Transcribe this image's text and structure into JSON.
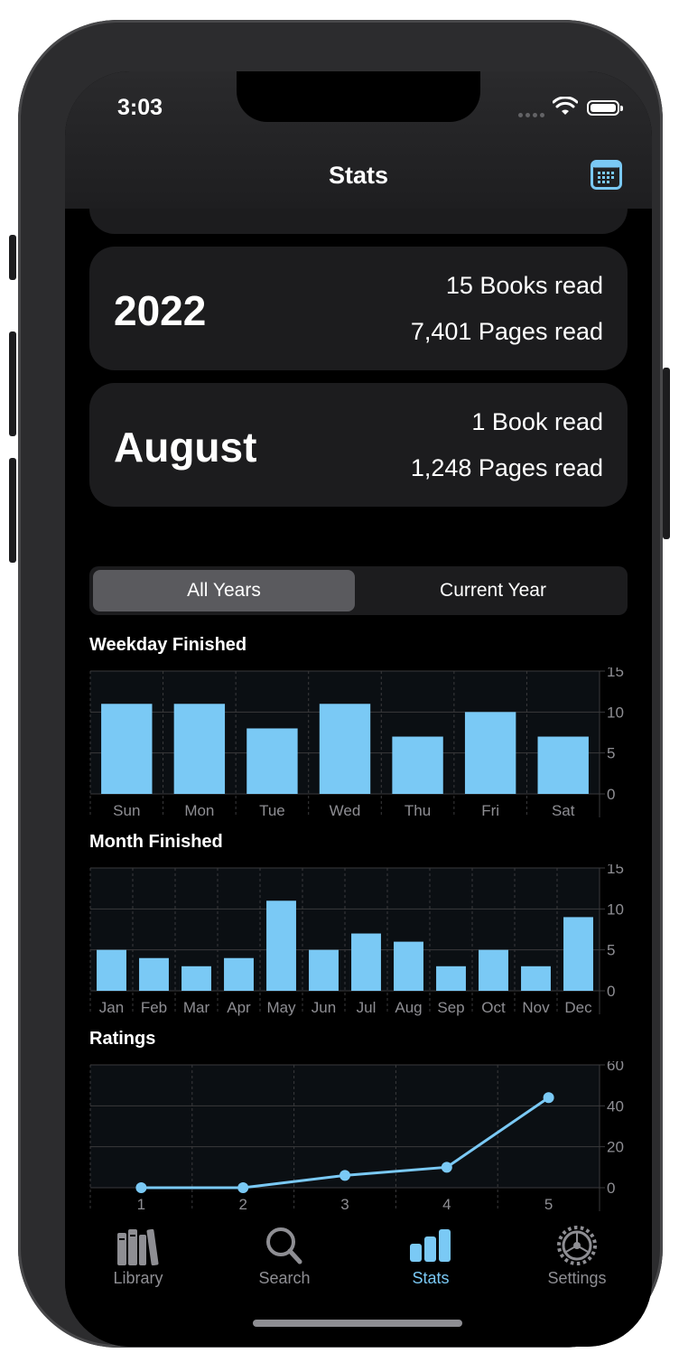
{
  "status": {
    "time": "3:03"
  },
  "nav": {
    "title": "Stats",
    "calendar_icon": "calendar-icon"
  },
  "cards": [
    {
      "label": "2022",
      "line1": "15 Books read",
      "line2": "7,401 Pages read"
    },
    {
      "label": "August",
      "line1": "1 Book read",
      "line2": "1,248 Pages read"
    }
  ],
  "segment": {
    "options": [
      "All Years",
      "Current Year"
    ],
    "selected": "All Years"
  },
  "colors": {
    "accent": "#7ac9f5",
    "background": "#000000",
    "card": "#1c1c1e",
    "plot_bg": "#0b0f13"
  },
  "chart_data": [
    {
      "type": "bar",
      "title": "Weekday Finished",
      "categories": [
        "Sun",
        "Mon",
        "Tue",
        "Wed",
        "Thu",
        "Fri",
        "Sat"
      ],
      "values": [
        11,
        11,
        8,
        11,
        7,
        10,
        7
      ],
      "ylim": [
        0,
        15
      ],
      "yticks": [
        0,
        5,
        10,
        15
      ],
      "grid": true
    },
    {
      "type": "bar",
      "title": "Month Finished",
      "categories": [
        "Jan",
        "Feb",
        "Mar",
        "Apr",
        "May",
        "Jun",
        "Jul",
        "Aug",
        "Sep",
        "Oct",
        "Nov",
        "Dec"
      ],
      "values": [
        5,
        4,
        3,
        4,
        11,
        5,
        7,
        6,
        3,
        5,
        3,
        9
      ],
      "ylim": [
        0,
        15
      ],
      "yticks": [
        0,
        5,
        10,
        15
      ],
      "grid": true
    },
    {
      "type": "line",
      "title": "Ratings",
      "x": [
        1,
        2,
        3,
        4,
        5
      ],
      "values": [
        0,
        0,
        6,
        10,
        44
      ],
      "xlim": [
        0.5,
        5.5
      ],
      "ylim": [
        0,
        60
      ],
      "yticks": [
        0,
        20,
        40,
        60
      ],
      "grid": true
    }
  ],
  "tabs": [
    {
      "label": "Library",
      "icon": "books-icon"
    },
    {
      "label": "Search",
      "icon": "search-icon"
    },
    {
      "label": "Stats",
      "icon": "bar-chart-icon",
      "active": true
    },
    {
      "label": "Settings",
      "icon": "gear-icon"
    }
  ]
}
